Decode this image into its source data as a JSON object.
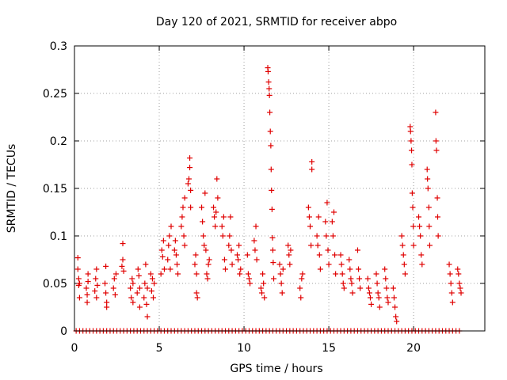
{
  "chart_data": {
    "type": "scatter",
    "title": "Day 120 of 2021, SRMTID for receiver abpo",
    "xlabel": "GPS time / hours",
    "ylabel": "SRMTID / TECUs",
    "xlim": [
      0,
      24.2
    ],
    "ylim": [
      0,
      0.3
    ],
    "x_ticks": [
      0,
      5,
      10,
      15,
      20
    ],
    "x_tick_labels": [
      "0",
      "5",
      "10",
      "15",
      "20"
    ],
    "y_ticks": [
      0,
      0.05,
      0.1,
      0.15,
      0.2,
      0.25,
      0.3
    ],
    "y_tick_labels": [
      "0",
      "0.05",
      "0.1",
      "0.15",
      "0.2",
      "0.25",
      "0.3"
    ],
    "grid": true,
    "series": [
      {
        "name": "SRMTID",
        "color": "#e00000",
        "marker": "plus",
        "points": [
          [
            0.2,
            0.077
          ],
          [
            0.2,
            0.065
          ],
          [
            0.25,
            0.055
          ],
          [
            0.25,
            0.048
          ],
          [
            0.3,
            0.035
          ],
          [
            0.3,
            0.05
          ],
          [
            0.7,
            0.045
          ],
          [
            0.75,
            0.038
          ],
          [
            0.75,
            0.03
          ],
          [
            0.8,
            0.052
          ],
          [
            0.8,
            0.06
          ],
          [
            1.2,
            0.042
          ],
          [
            1.25,
            0.055
          ],
          [
            1.3,
            0.065
          ],
          [
            1.3,
            0.035
          ],
          [
            1.35,
            0.048
          ],
          [
            1.8,
            0.05
          ],
          [
            1.85,
            0.068
          ],
          [
            1.85,
            0.04
          ],
          [
            1.9,
            0.025
          ],
          [
            1.9,
            0.03
          ],
          [
            2.3,
            0.045
          ],
          [
            2.35,
            0.055
          ],
          [
            2.4,
            0.038
          ],
          [
            2.45,
            0.06
          ],
          [
            2.8,
            0.068
          ],
          [
            2.85,
            0.075
          ],
          [
            2.85,
            0.092
          ],
          [
            2.9,
            0.063
          ],
          [
            3.3,
            0.045
          ],
          [
            3.35,
            0.035
          ],
          [
            3.4,
            0.055
          ],
          [
            3.45,
            0.05
          ],
          [
            3.45,
            0.03
          ],
          [
            3.7,
            0.04
          ],
          [
            3.75,
            0.065
          ],
          [
            3.8,
            0.058
          ],
          [
            3.85,
            0.025
          ],
          [
            3.85,
            0.045
          ],
          [
            4.1,
            0.035
          ],
          [
            4.15,
            0.05
          ],
          [
            4.2,
            0.07
          ],
          [
            4.25,
            0.028
          ],
          [
            4.3,
            0.045
          ],
          [
            4.3,
            0.015
          ],
          [
            4.5,
            0.06
          ],
          [
            4.55,
            0.042
          ],
          [
            4.6,
            0.055
          ],
          [
            4.65,
            0.035
          ],
          [
            4.7,
            0.05
          ],
          [
            5.1,
            0.06
          ],
          [
            5.15,
            0.085
          ],
          [
            5.2,
            0.078
          ],
          [
            5.25,
            0.095
          ],
          [
            5.3,
            0.065
          ],
          [
            5.5,
            0.075
          ],
          [
            5.55,
            0.09
          ],
          [
            5.6,
            0.1
          ],
          [
            5.65,
            0.065
          ],
          [
            5.7,
            0.11
          ],
          [
            5.9,
            0.085
          ],
          [
            5.95,
            0.095
          ],
          [
            6.0,
            0.08
          ],
          [
            6.05,
            0.07
          ],
          [
            6.1,
            0.06
          ],
          [
            6.3,
            0.11
          ],
          [
            6.35,
            0.12
          ],
          [
            6.4,
            0.13
          ],
          [
            6.45,
            0.1
          ],
          [
            6.5,
            0.09
          ],
          [
            6.5,
            0.14
          ],
          [
            6.7,
            0.155
          ],
          [
            6.75,
            0.16
          ],
          [
            6.8,
            0.172
          ],
          [
            6.8,
            0.182
          ],
          [
            6.85,
            0.148
          ],
          [
            6.85,
            0.13
          ],
          [
            7.1,
            0.07
          ],
          [
            7.15,
            0.08
          ],
          [
            7.2,
            0.06
          ],
          [
            7.2,
            0.04
          ],
          [
            7.25,
            0.035
          ],
          [
            7.5,
            0.13
          ],
          [
            7.55,
            0.115
          ],
          [
            7.6,
            0.1
          ],
          [
            7.65,
            0.09
          ],
          [
            7.7,
            0.145
          ],
          [
            7.75,
            0.085
          ],
          [
            7.8,
            0.06
          ],
          [
            7.85,
            0.055
          ],
          [
            7.9,
            0.07
          ],
          [
            7.95,
            0.075
          ],
          [
            8.2,
            0.13
          ],
          [
            8.25,
            0.12
          ],
          [
            8.3,
            0.11
          ],
          [
            8.35,
            0.125
          ],
          [
            8.4,
            0.16
          ],
          [
            8.45,
            0.14
          ],
          [
            8.7,
            0.11
          ],
          [
            8.75,
            0.1
          ],
          [
            8.8,
            0.12
          ],
          [
            8.85,
            0.075
          ],
          [
            8.9,
            0.065
          ],
          [
            9.1,
            0.09
          ],
          [
            9.15,
            0.1
          ],
          [
            9.2,
            0.12
          ],
          [
            9.25,
            0.085
          ],
          [
            9.3,
            0.07
          ],
          [
            9.6,
            0.08
          ],
          [
            9.65,
            0.075
          ],
          [
            9.7,
            0.09
          ],
          [
            9.75,
            0.06
          ],
          [
            9.8,
            0.065
          ],
          [
            10.2,
            0.08
          ],
          [
            10.25,
            0.06
          ],
          [
            10.3,
            0.055
          ],
          [
            10.35,
            0.05
          ],
          [
            10.6,
            0.095
          ],
          [
            10.65,
            0.085
          ],
          [
            10.7,
            0.11
          ],
          [
            10.75,
            0.075
          ],
          [
            11.0,
            0.045
          ],
          [
            11.05,
            0.04
          ],
          [
            11.1,
            0.06
          ],
          [
            11.15,
            0.05
          ],
          [
            11.2,
            0.035
          ],
          [
            11.4,
            0.277
          ],
          [
            11.42,
            0.273
          ],
          [
            11.45,
            0.262
          ],
          [
            11.48,
            0.255
          ],
          [
            11.5,
            0.248
          ],
          [
            11.52,
            0.23
          ],
          [
            11.55,
            0.21
          ],
          [
            11.58,
            0.195
          ],
          [
            11.6,
            0.17
          ],
          [
            11.62,
            0.148
          ],
          [
            11.65,
            0.128
          ],
          [
            11.68,
            0.098
          ],
          [
            11.7,
            0.085
          ],
          [
            11.72,
            0.072
          ],
          [
            11.75,
            0.055
          ],
          [
            12.1,
            0.07
          ],
          [
            12.15,
            0.06
          ],
          [
            12.2,
            0.05
          ],
          [
            12.25,
            0.04
          ],
          [
            12.3,
            0.065
          ],
          [
            12.6,
            0.09
          ],
          [
            12.65,
            0.08
          ],
          [
            12.7,
            0.07
          ],
          [
            12.75,
            0.085
          ],
          [
            13.3,
            0.045
          ],
          [
            13.35,
            0.035
          ],
          [
            13.4,
            0.055
          ],
          [
            13.45,
            0.06
          ],
          [
            13.8,
            0.13
          ],
          [
            13.85,
            0.12
          ],
          [
            13.9,
            0.11
          ],
          [
            13.95,
            0.09
          ],
          [
            14.0,
            0.17
          ],
          [
            14.0,
            0.178
          ],
          [
            14.3,
            0.1
          ],
          [
            14.35,
            0.09
          ],
          [
            14.4,
            0.12
          ],
          [
            14.45,
            0.08
          ],
          [
            14.5,
            0.065
          ],
          [
            14.8,
            0.115
          ],
          [
            14.85,
            0.1
          ],
          [
            14.9,
            0.135
          ],
          [
            14.95,
            0.085
          ],
          [
            15.0,
            0.07
          ],
          [
            15.2,
            0.115
          ],
          [
            15.25,
            0.1
          ],
          [
            15.3,
            0.125
          ],
          [
            15.35,
            0.08
          ],
          [
            15.4,
            0.06
          ],
          [
            15.7,
            0.08
          ],
          [
            15.75,
            0.07
          ],
          [
            15.8,
            0.06
          ],
          [
            15.85,
            0.05
          ],
          [
            15.9,
            0.045
          ],
          [
            16.2,
            0.075
          ],
          [
            16.25,
            0.065
          ],
          [
            16.3,
            0.055
          ],
          [
            16.35,
            0.05
          ],
          [
            16.4,
            0.04
          ],
          [
            16.7,
            0.085
          ],
          [
            16.75,
            0.065
          ],
          [
            16.8,
            0.055
          ],
          [
            16.85,
            0.045
          ],
          [
            17.3,
            0.055
          ],
          [
            17.35,
            0.045
          ],
          [
            17.4,
            0.04
          ],
          [
            17.45,
            0.035
          ],
          [
            17.5,
            0.028
          ],
          [
            17.8,
            0.06
          ],
          [
            17.85,
            0.05
          ],
          [
            17.9,
            0.04
          ],
          [
            17.95,
            0.035
          ],
          [
            18.0,
            0.025
          ],
          [
            18.3,
            0.065
          ],
          [
            18.35,
            0.055
          ],
          [
            18.4,
            0.045
          ],
          [
            18.45,
            0.035
          ],
          [
            18.5,
            0.03
          ],
          [
            18.8,
            0.045
          ],
          [
            18.85,
            0.035
          ],
          [
            18.9,
            0.025
          ],
          [
            18.95,
            0.015
          ],
          [
            19.0,
            0.01
          ],
          [
            19.3,
            0.1
          ],
          [
            19.35,
            0.09
          ],
          [
            19.4,
            0.08
          ],
          [
            19.45,
            0.07
          ],
          [
            19.5,
            0.06
          ],
          [
            19.8,
            0.215
          ],
          [
            19.82,
            0.21
          ],
          [
            19.85,
            0.2
          ],
          [
            19.88,
            0.19
          ],
          [
            19.9,
            0.175
          ],
          [
            19.92,
            0.145
          ],
          [
            19.95,
            0.13
          ],
          [
            19.98,
            0.11
          ],
          [
            20.0,
            0.09
          ],
          [
            20.3,
            0.12
          ],
          [
            20.35,
            0.11
          ],
          [
            20.4,
            0.1
          ],
          [
            20.45,
            0.08
          ],
          [
            20.5,
            0.07
          ],
          [
            20.8,
            0.17
          ],
          [
            20.82,
            0.16
          ],
          [
            20.85,
            0.15
          ],
          [
            20.9,
            0.13
          ],
          [
            20.92,
            0.11
          ],
          [
            20.95,
            0.09
          ],
          [
            21.3,
            0.23
          ],
          [
            21.32,
            0.2
          ],
          [
            21.35,
            0.19
          ],
          [
            21.4,
            0.14
          ],
          [
            21.42,
            0.12
          ],
          [
            21.45,
            0.1
          ],
          [
            22.1,
            0.07
          ],
          [
            22.15,
            0.06
          ],
          [
            22.2,
            0.05
          ],
          [
            22.25,
            0.04
          ],
          [
            22.3,
            0.03
          ],
          [
            22.6,
            0.065
          ],
          [
            22.65,
            0.06
          ],
          [
            22.7,
            0.05
          ],
          [
            22.75,
            0.045
          ],
          [
            22.8,
            0.04
          ]
        ],
        "zero_points_x": [
          0.1,
          0.3,
          0.5,
          0.7,
          0.9,
          1.1,
          1.3,
          1.5,
          1.7,
          1.9,
          2.1,
          2.3,
          2.5,
          2.7,
          2.9,
          3.1,
          3.3,
          3.5,
          3.7,
          3.9,
          4.1,
          4.3,
          4.5,
          4.7,
          4.9,
          5.1,
          5.3,
          5.5,
          5.7,
          5.9,
          6.1,
          6.3,
          6.5,
          6.7,
          6.9,
          7.1,
          7.3,
          7.5,
          7.7,
          7.9,
          8.1,
          8.3,
          8.5,
          8.7,
          8.9,
          9.1,
          9.3,
          9.5,
          9.7,
          9.9,
          10.1,
          10.3,
          10.5,
          10.7,
          10.9,
          11.1,
          11.3,
          11.5,
          11.7,
          11.9,
          12.1,
          12.3,
          12.5,
          12.7,
          12.9,
          13.1,
          13.3,
          13.5,
          13.7,
          13.9,
          14.1,
          14.3,
          14.5,
          14.7,
          14.9,
          15.1,
          15.3,
          15.5,
          15.7,
          15.9,
          16.1,
          16.3,
          16.5,
          16.7,
          16.9,
          17.1,
          17.3,
          17.5,
          17.7,
          17.9,
          18.1,
          18.3,
          18.5,
          18.7,
          18.9,
          19.1,
          19.3,
          19.5,
          19.7,
          19.9,
          20.1,
          20.3,
          20.5,
          20.7,
          20.9,
          21.1,
          21.3,
          21.5,
          21.7,
          21.9,
          22.1,
          22.3,
          22.5,
          22.7
        ]
      }
    ]
  }
}
